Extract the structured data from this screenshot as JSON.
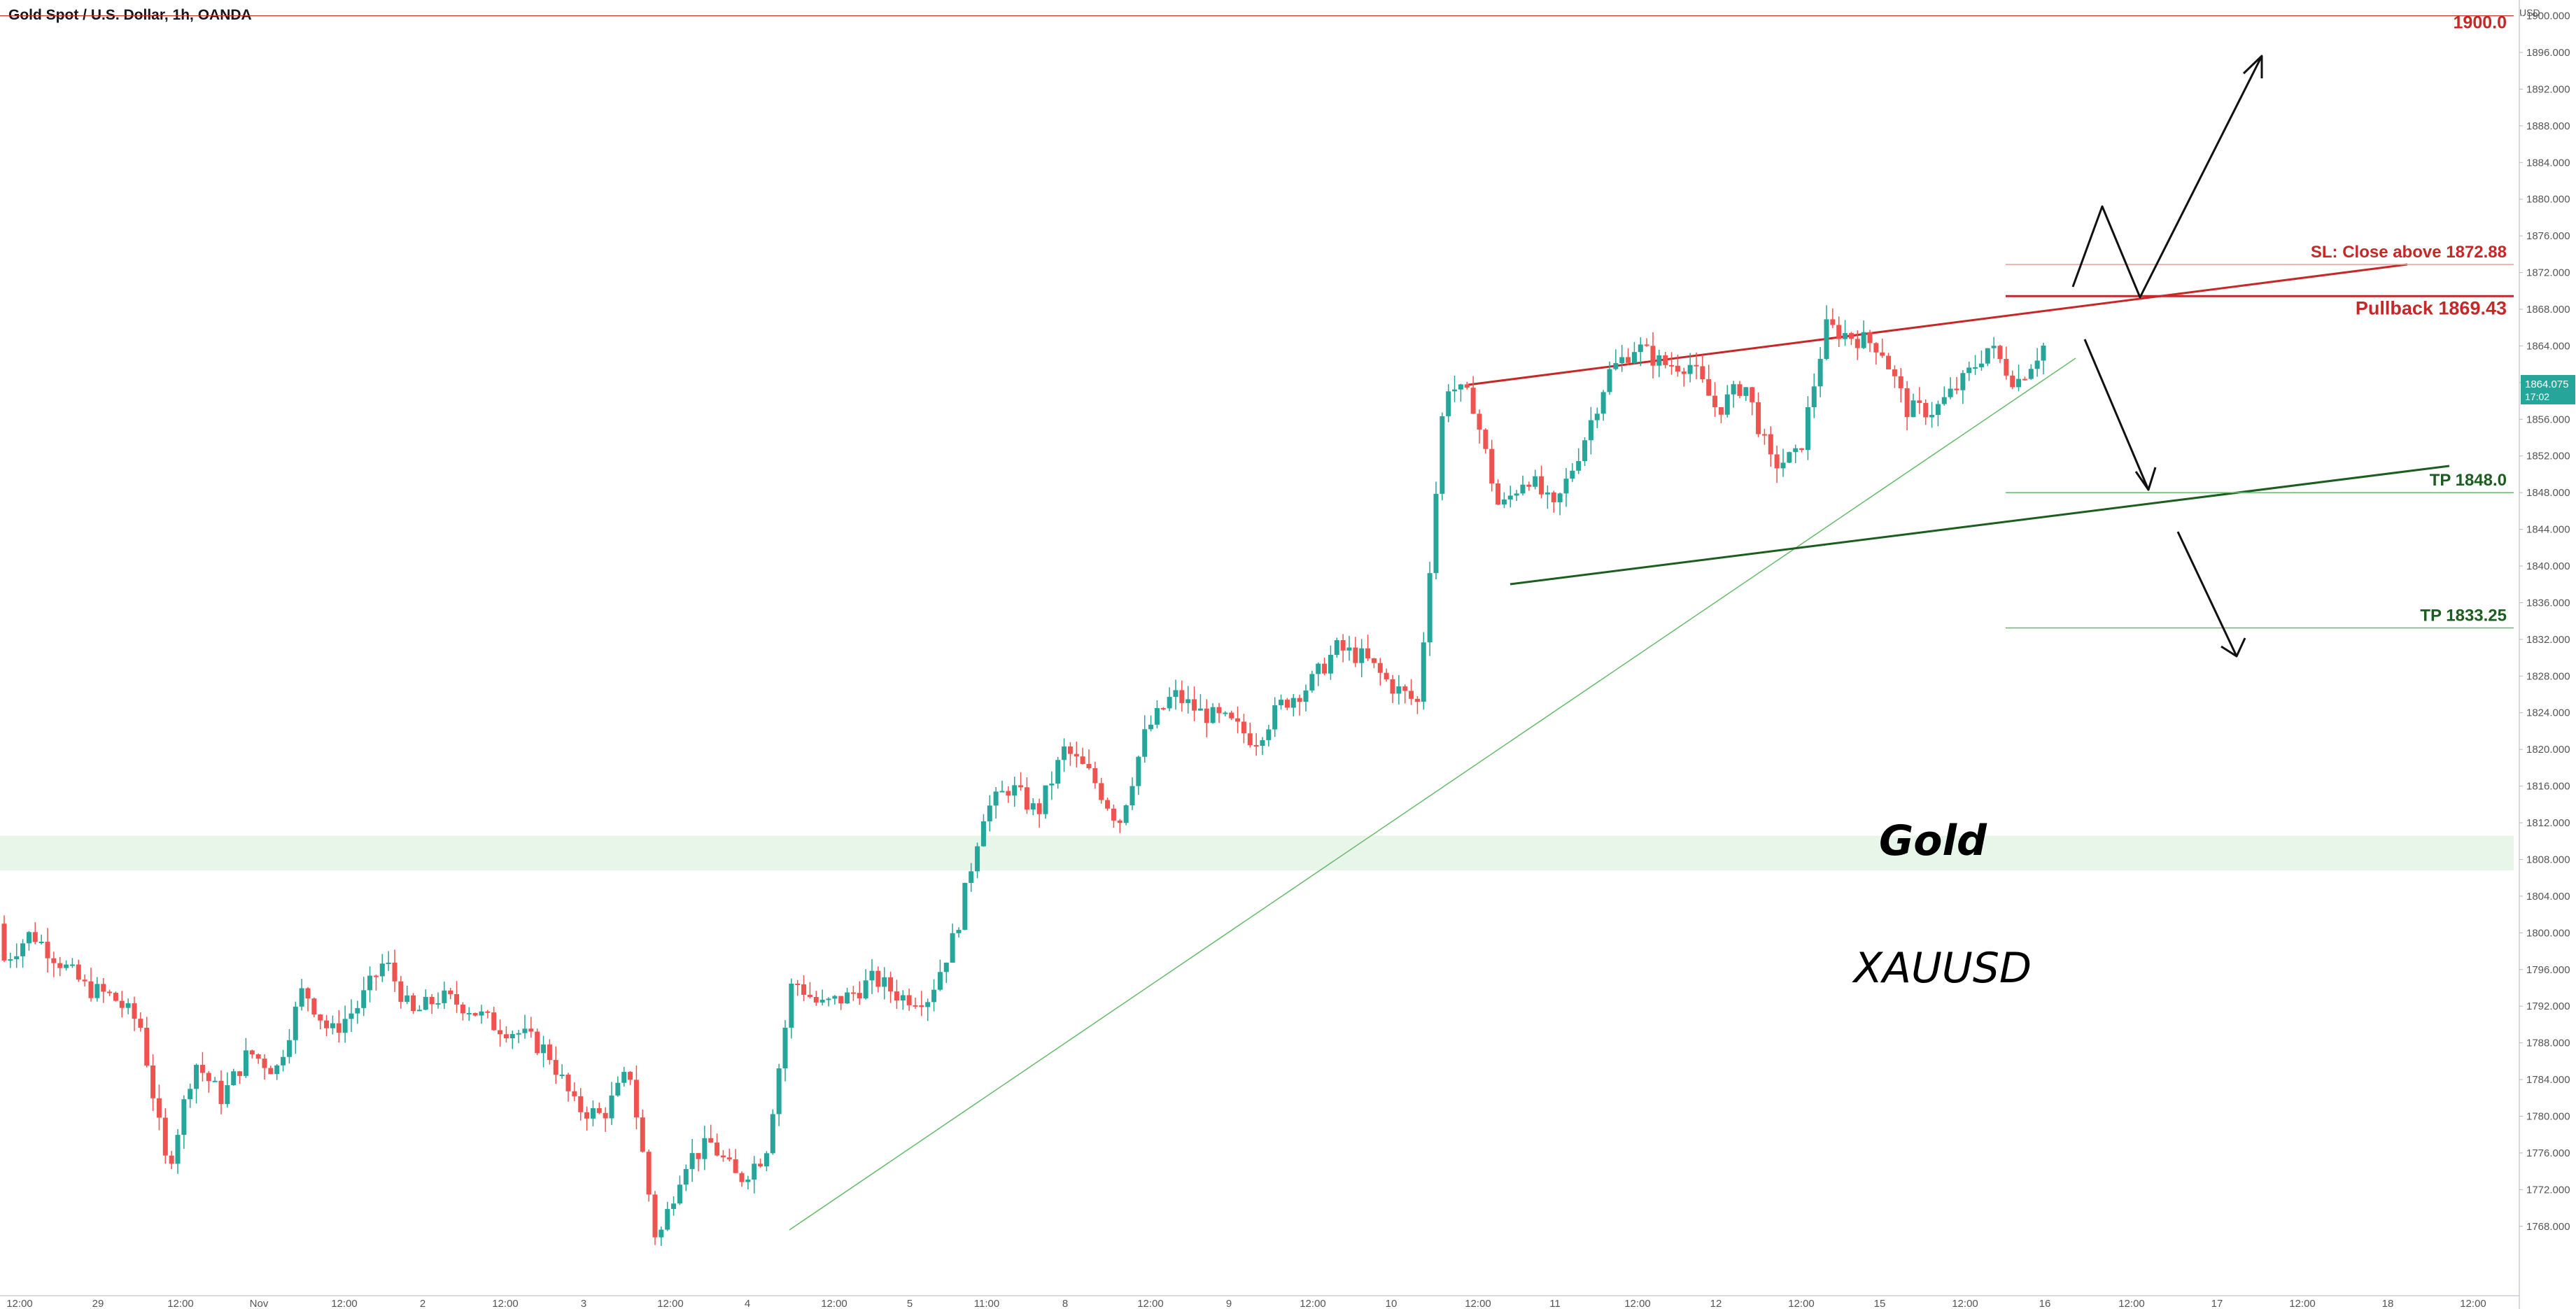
{
  "header": {
    "title": "Gold Spot / U.S. Dollar, 1h, OANDA",
    "currency": "USD"
  },
  "colors": {
    "up": "#26a69a",
    "down": "#ef5350",
    "red_line": "#c62828",
    "green_line": "#1b5e20",
    "thin_green": "#66bb6a",
    "zone": "#e8f5e9",
    "price_badge": "#26a69a"
  },
  "chart_data": {
    "type": "candlestick",
    "ylim": [
      1764,
      1904
    ],
    "y_ticks": [
      "1900.000",
      "1896.000",
      "1892.000",
      "1888.000",
      "1884.000",
      "1880.000",
      "1876.000",
      "1872.000",
      "1868.000",
      "1864.000",
      "1860.000",
      "1856.000",
      "1852.000",
      "1848.000",
      "1844.000",
      "1840.000",
      "1836.000",
      "1832.000",
      "1828.000",
      "1824.000",
      "1820.000",
      "1816.000",
      "1812.000",
      "1808.000",
      "1804.000",
      "1800.000",
      "1796.000",
      "1792.000",
      "1788.000",
      "1784.000",
      "1780.000",
      "1776.000",
      "1772.000",
      "1768.000"
    ],
    "x_ticks": [
      "12:00",
      "29",
      "12:00",
      "Nov",
      "12:00",
      "2",
      "12:00",
      "3",
      "12:00",
      "4",
      "12:00",
      "5",
      "11:00",
      "8",
      "12:00",
      "9",
      "12:00",
      "10",
      "12:00",
      "11",
      "12:00",
      "12",
      "12:00",
      "15",
      "12:00",
      "16",
      "12:00",
      "17",
      "12:00",
      "18",
      "12:00"
    ],
    "anchors": [
      [
        1801,
        1797
      ],
      [
        1803,
        1800
      ],
      [
        1800,
        1797
      ],
      [
        1797,
        1794
      ],
      [
        1798,
        1793
      ],
      [
        1797,
        1790
      ],
      [
        1789,
        1774
      ],
      [
        1782,
        1786
      ],
      [
        1785,
        1782
      ],
      [
        1785,
        1787
      ],
      [
        1787,
        1785
      ],
      [
        1791,
        1794
      ],
      [
        1793,
        1789
      ],
      [
        1790,
        1792
      ],
      [
        1795,
        1797
      ],
      [
        1793,
        1791
      ],
      [
        1793,
        1793
      ],
      [
        1793,
        1792
      ],
      [
        1795,
        1790
      ],
      [
        1790,
        1789
      ],
      [
        1789,
        1787
      ],
      [
        1786,
        1781
      ],
      [
        1783,
        1780
      ],
      [
        1781,
        1785
      ],
      [
        1784,
        1766
      ],
      [
        1767,
        1775
      ],
      [
        1773,
        1777
      ],
      [
        1777,
        1773
      ],
      [
        1773,
        1776
      ],
      [
        1780,
        1795
      ],
      [
        1796,
        1792
      ],
      [
        1792,
        1793
      ],
      [
        1791,
        1795
      ],
      [
        1797,
        1793
      ],
      [
        1797,
        1793
      ],
      [
        1792,
        1800
      ],
      [
        1804,
        1813
      ],
      [
        1818,
        1816
      ],
      [
        1816,
        1813
      ],
      [
        1815,
        1820
      ],
      [
        1820,
        1817
      ],
      [
        1814,
        1812
      ],
      [
        1817,
        1822
      ],
      [
        1824,
        1826
      ],
      [
        1826,
        1824
      ],
      [
        1825,
        1823
      ],
      [
        1824,
        1821
      ],
      [
        1823,
        1825
      ],
      [
        1826,
        1827
      ],
      [
        1828,
        1831
      ],
      [
        1832,
        1830
      ],
      [
        1830,
        1827
      ],
      [
        1826,
        1825
      ],
      [
        1826,
        1860
      ],
      [
        1865,
        1858
      ],
      [
        1857,
        1846
      ],
      [
        1848,
        1850
      ],
      [
        1849,
        1846
      ],
      [
        1846,
        1853
      ],
      [
        1858,
        1861
      ],
      [
        1863,
        1864
      ],
      [
        1864,
        1862
      ],
      [
        1863,
        1862
      ],
      [
        1860,
        1857
      ],
      [
        1857,
        1860
      ],
      [
        1858,
        1851
      ],
      [
        1847,
        1852
      ],
      [
        1856,
        1866
      ],
      [
        1867,
        1865
      ],
      [
        1866,
        1864
      ],
      [
        1863,
        1857
      ],
      [
        1858,
        1857
      ],
      [
        1856,
        1860
      ],
      [
        1861,
        1864
      ],
      [
        1864,
        1860
      ],
      [
        1861,
        1864
      ]
    ],
    "x_range": [
      0,
      1222
    ],
    "levels": [
      {
        "label": "1900.0",
        "value": 1900.0
      },
      {
        "label": "SL: Close above 1872.88",
        "value": 1872.88
      },
      {
        "label": "Pullback 1869.43",
        "value": 1869.43
      },
      {
        "label": "TP 1848.0",
        "value": 1848.0
      },
      {
        "label": "TP 1833.25",
        "value": 1833.25
      }
    ],
    "current_price": {
      "value": "1864.075",
      "timer": "17:02"
    },
    "annotations": {
      "title": "Gold",
      "subtitle": "XAUUSD"
    }
  }
}
